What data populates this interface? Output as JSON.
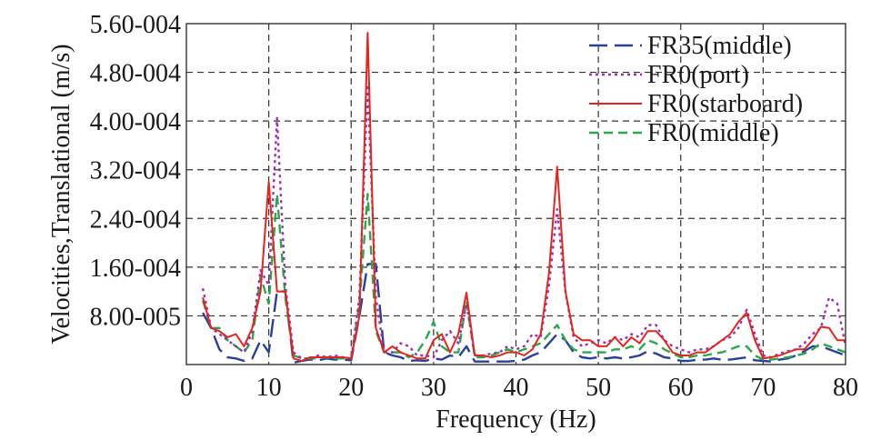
{
  "chart_data": {
    "type": "line",
    "title": "",
    "xlabel": "Frequency (Hz)",
    "ylabel": "Velocities,Translational (m/s)",
    "xlim": [
      0,
      80
    ],
    "ylim": [
      0,
      0.00056
    ],
    "x_ticks": [
      0,
      10,
      20,
      30,
      40,
      50,
      60,
      70,
      80
    ],
    "x_tick_labels": [
      "0",
      "10",
      "20",
      "30",
      "40",
      "50",
      "60",
      "70",
      "80"
    ],
    "y_ticks": [
      8e-05,
      0.00016,
      0.00024,
      0.00032,
      0.0004,
      0.00048,
      0.00056
    ],
    "y_tick_labels": [
      "8.00-005",
      "1.60-004",
      "2.40-004",
      "3.20-004",
      "4.00-004",
      "4.80-004",
      "5.60-004"
    ],
    "grid": true,
    "legend_position": "top-right",
    "series": [
      {
        "name": "FR35(middle)",
        "color": "#2b3f9e",
        "dash": "long-dash",
        "x": [
          2,
          3,
          4,
          5,
          6,
          7,
          8,
          9,
          10,
          11,
          12,
          13,
          14,
          15,
          16,
          17,
          18,
          19,
          20,
          21,
          22,
          23,
          24,
          25,
          26,
          27,
          28,
          29,
          30,
          31,
          32,
          33,
          34,
          35,
          36,
          37,
          38,
          39,
          40,
          41,
          42,
          43,
          44,
          45,
          46,
          47,
          48,
          49,
          50,
          51,
          52,
          53,
          54,
          55,
          56,
          57,
          58,
          59,
          60,
          61,
          62,
          63,
          64,
          65,
          66,
          67,
          68,
          69,
          70,
          71,
          72,
          73,
          74,
          75,
          76,
          77,
          78,
          79,
          80
        ],
        "values": [
          8.5e-05,
          6e-05,
          2.5e-05,
          1.2e-05,
          1e-05,
          6e-06,
          1e-05,
          4e-05,
          2e-05,
          0.00012,
          0.00012,
          3e-06,
          6e-06,
          8e-06,
          7e-06,
          1e-05,
          8e-06,
          8e-06,
          7e-06,
          8e-05,
          0.000165,
          0.000165,
          2e-05,
          1.5e-05,
          1.2e-05,
          6e-06,
          7e-06,
          6e-06,
          1e-05,
          8e-06,
          1.5e-05,
          1.2e-05,
          3e-05,
          5e-06,
          5e-06,
          5e-06,
          5e-06,
          5e-06,
          6e-06,
          8e-06,
          1.5e-05,
          2e-05,
          3.5e-05,
          5e-05,
          4e-05,
          2e-05,
          1.2e-05,
          1e-05,
          1.2e-05,
          1e-05,
          1.2e-05,
          1e-05,
          1.2e-05,
          1.5e-05,
          2.2e-05,
          1.8e-05,
          1.2e-05,
          1e-05,
          6e-06,
          6e-06,
          8e-06,
          8e-06,
          1e-05,
          8e-06,
          8e-06,
          1e-05,
          1.2e-05,
          7e-06,
          6e-06,
          5e-06,
          8e-06,
          1e-05,
          1.5e-05,
          2.2e-05,
          3e-05,
          3e-05,
          2.5e-05,
          2e-05,
          1.5e-05
        ]
      },
      {
        "name": "FR0(port)",
        "color": "#9b30b5",
        "dash": "dotted",
        "x": [
          2,
          3,
          4,
          5,
          6,
          7,
          8,
          9,
          10,
          11,
          12,
          13,
          14,
          15,
          16,
          17,
          18,
          19,
          20,
          21,
          22,
          23,
          24,
          25,
          26,
          27,
          28,
          29,
          30,
          31,
          32,
          33,
          34,
          35,
          36,
          37,
          38,
          39,
          40,
          41,
          42,
          43,
          44,
          45,
          46,
          47,
          48,
          49,
          50,
          51,
          52,
          53,
          54,
          55,
          56,
          57,
          58,
          59,
          60,
          61,
          62,
          63,
          64,
          65,
          66,
          67,
          68,
          69,
          70,
          71,
          72,
          73,
          74,
          75,
          76,
          77,
          78,
          79,
          80
        ],
        "values": [
          0.000125,
          6e-05,
          5e-05,
          4e-05,
          3e-05,
          2e-05,
          5.5e-05,
          0.000155,
          0.00013,
          0.000405,
          0.00013,
          2e-05,
          1e-05,
          1e-05,
          1.5e-05,
          1.2e-05,
          1.5e-05,
          1.2e-05,
          1e-05,
          0.00011,
          0.00046,
          0.00011,
          2e-05,
          2e-05,
          3.5e-05,
          3e-05,
          1.5e-05,
          1.5e-05,
          1.2e-05,
          4e-05,
          5.5e-05,
          3.5e-05,
          0.0001,
          1.5e-05,
          1.5e-05,
          1.8e-05,
          2e-05,
          3e-05,
          2.5e-05,
          3e-05,
          5e-05,
          4.5e-05,
          0.00013,
          0.000255,
          0.00012,
          4.5e-05,
          3e-05,
          3.5e-05,
          4e-05,
          3.5e-05,
          4.5e-05,
          4e-05,
          5e-05,
          4.5e-05,
          6.5e-05,
          6.5e-05,
          4e-05,
          3e-05,
          2.5e-05,
          2e-05,
          2.5e-05,
          2.5e-05,
          3e-05,
          4e-05,
          4.5e-05,
          6e-05,
          9e-05,
          5e-05,
          1.5e-05,
          1.2e-05,
          1.8e-05,
          2.2e-05,
          2.5e-05,
          3.5e-05,
          5e-05,
          6e-05,
          0.00011,
          0.0001,
          3e-05
        ]
      },
      {
        "name": "FR0(starboard)",
        "color": "#e8231e",
        "dash": "solid",
        "x": [
          2,
          3,
          4,
          5,
          6,
          7,
          8,
          9,
          10,
          11,
          12,
          13,
          14,
          15,
          16,
          17,
          18,
          19,
          20,
          21,
          22,
          23,
          24,
          25,
          26,
          27,
          28,
          29,
          30,
          31,
          32,
          33,
          34,
          35,
          36,
          37,
          38,
          39,
          40,
          41,
          42,
          43,
          44,
          45,
          46,
          47,
          48,
          49,
          50,
          51,
          52,
          53,
          54,
          55,
          56,
          57,
          58,
          59,
          60,
          61,
          62,
          63,
          64,
          65,
          66,
          67,
          68,
          69,
          70,
          71,
          72,
          73,
          74,
          75,
          76,
          77,
          78,
          79,
          80
        ],
        "values": [
          0.00011,
          6e-05,
          5.5e-05,
          4.5e-05,
          5e-05,
          3e-05,
          6e-05,
          0.00012,
          0.0003,
          0.00012,
          0.00012,
          1e-05,
          6e-06,
          1.2e-05,
          1.2e-05,
          1.2e-05,
          1.2e-05,
          1.2e-05,
          1e-05,
          8e-05,
          0.000545,
          6e-05,
          2e-05,
          3e-05,
          2e-05,
          1.5e-05,
          1e-05,
          1e-05,
          4e-05,
          5e-05,
          2e-05,
          5e-05,
          0.000118,
          1.5e-05,
          1.5e-05,
          1.2e-05,
          1.5e-05,
          2e-05,
          2e-05,
          1.5e-05,
          2.5e-05,
          5e-05,
          0.00015,
          0.000325,
          0.00012,
          5e-05,
          4e-05,
          4e-05,
          3e-05,
          3e-05,
          4.5e-05,
          3e-05,
          4.5e-05,
          3.5e-05,
          5.5e-05,
          5.5e-05,
          4e-05,
          2e-05,
          1.5e-05,
          1.5e-05,
          2e-05,
          2e-05,
          3e-05,
          4e-05,
          5e-05,
          7e-05,
          8.5e-05,
          4e-05,
          1e-05,
          1.2e-05,
          1.5e-05,
          2e-05,
          2.5e-05,
          2.5e-05,
          4e-05,
          6.2e-05,
          6e-05,
          4e-05,
          4e-05
        ]
      },
      {
        "name": "FR0(middle)",
        "color": "#2aa84a",
        "dash": "dashed",
        "x": [
          2,
          3,
          4,
          5,
          6,
          7,
          8,
          9,
          10,
          11,
          12,
          13,
          14,
          15,
          16,
          17,
          18,
          19,
          20,
          21,
          22,
          23,
          24,
          25,
          26,
          27,
          28,
          29,
          30,
          31,
          32,
          33,
          34,
          35,
          36,
          37,
          38,
          39,
          40,
          41,
          42,
          43,
          44,
          45,
          46,
          47,
          48,
          49,
          50,
          51,
          52,
          53,
          54,
          55,
          56,
          57,
          58,
          59,
          60,
          61,
          62,
          63,
          64,
          65,
          66,
          67,
          68,
          69,
          70,
          71,
          72,
          73,
          74,
          75,
          76,
          77,
          78,
          79,
          80
        ],
        "values": [
          0.000105,
          6e-05,
          6e-05,
          4e-05,
          3e-05,
          2e-05,
          4e-05,
          0.000145,
          0.0001,
          0.00028,
          0.00011,
          1.5e-05,
          1e-05,
          1e-05,
          1e-05,
          1.2e-05,
          1e-05,
          1e-05,
          1e-05,
          0.0001,
          0.00028,
          5.5e-05,
          2e-05,
          2e-05,
          2e-05,
          1.2e-05,
          2e-05,
          4e-05,
          7e-05,
          3e-05,
          2e-05,
          2e-05,
          0.000105,
          1.2e-05,
          1.2e-05,
          1.5e-05,
          2e-05,
          2.5e-05,
          2e-05,
          2.5e-05,
          3e-05,
          3.5e-05,
          5e-05,
          6.5e-05,
          4e-05,
          2.5e-05,
          2e-05,
          2e-05,
          2e-05,
          2e-05,
          2.5e-05,
          2.5e-05,
          3e-05,
          2.5e-05,
          4e-05,
          3.5e-05,
          2.5e-05,
          1.8e-05,
          1.2e-05,
          1.2e-05,
          1.5e-05,
          1.5e-05,
          1.8e-05,
          2e-05,
          2.5e-05,
          3e-05,
          3e-05,
          1.5e-05,
          8e-06,
          8e-06,
          1e-05,
          1.2e-05,
          1.5e-05,
          1.8e-05,
          2.5e-05,
          3.5e-05,
          3e-05,
          2.5e-05,
          2e-05
        ]
      }
    ]
  }
}
